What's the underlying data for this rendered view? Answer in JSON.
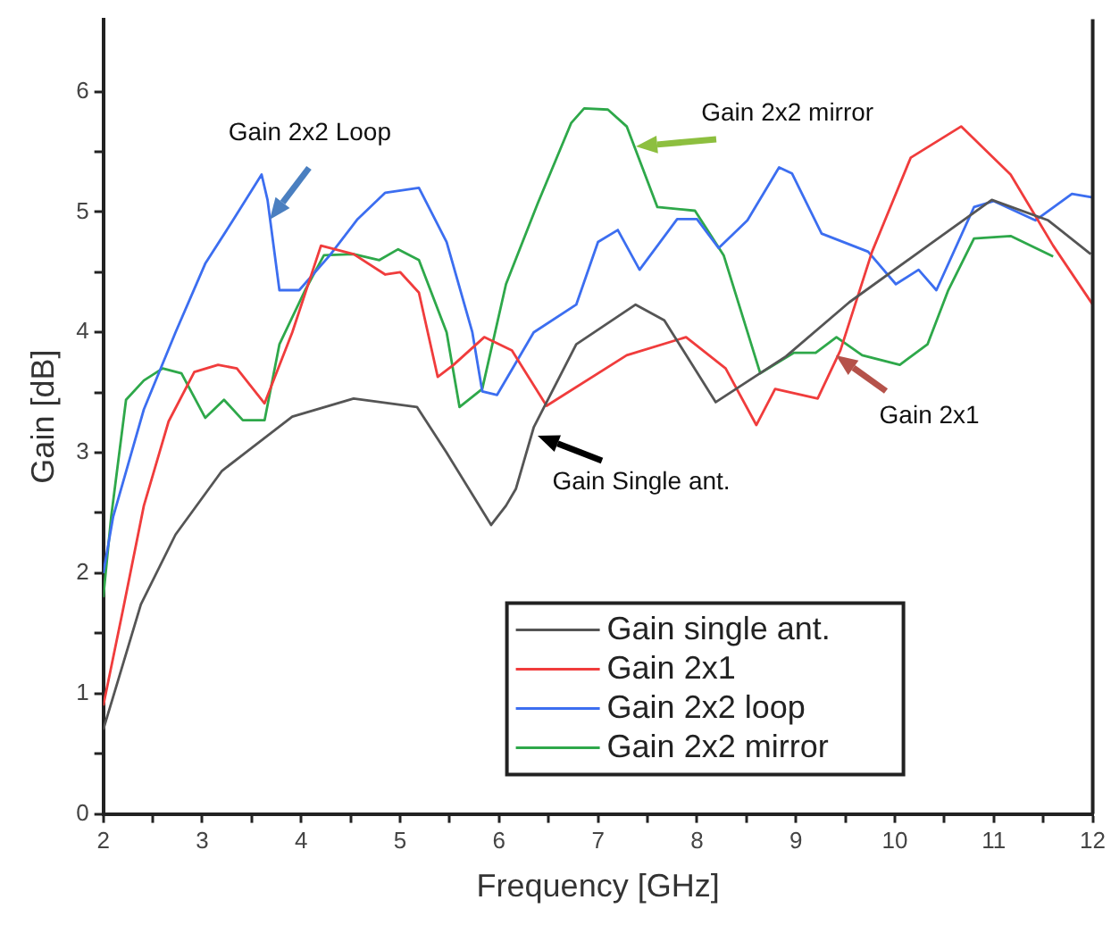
{
  "chart_data": {
    "type": "line",
    "xlabel": "Frequency [GHz]",
    "ylabel": "Gain [dB]",
    "xlim": [
      2,
      12
    ],
    "ylim": [
      0,
      6.6
    ],
    "xticks": [
      2,
      {
        "value": 2.5,
        "label": null
      },
      3,
      {
        "value": 3.5,
        "label": null
      },
      4,
      {
        "value": 4.5,
        "label": null
      },
      5,
      {
        "value": 5.5,
        "label": null
      },
      6,
      {
        "value": 6.5,
        "label": null
      },
      7,
      {
        "value": 7.5,
        "label": null
      },
      8,
      {
        "value": 8.5,
        "label": null
      },
      9,
      {
        "value": 9.5,
        "label": null
      },
      10,
      {
        "value": 10.5,
        "label": null
      },
      11,
      {
        "value": 11.5,
        "label": null
      },
      12
    ],
    "yticks": [
      0,
      {
        "value": 0.5,
        "label": null
      },
      1,
      {
        "value": 1.5,
        "label": null
      },
      2,
      {
        "value": 2.5,
        "label": null
      },
      3,
      {
        "value": 3.5,
        "label": null
      },
      4,
      {
        "value": 4.5,
        "label": null
      },
      5,
      {
        "value": 5.5,
        "label": null
      },
      6
    ],
    "grid": false,
    "legend": "bottom",
    "line_style": "solid",
    "series": [
      {
        "name": "Gain single ant.",
        "color": "#555555",
        "x": [
          2,
          2.38,
          2.73,
          3.2,
          3.91,
          4.53,
          5.17,
          5.47,
          5.92,
          6.07,
          6.17,
          6.35,
          6.78,
          7.38,
          7.67,
          8.19,
          8.9,
          9.54,
          10.3,
          10.98,
          11.55,
          11.98
        ],
        "values": [
          0.7,
          1.74,
          2.32,
          2.85,
          3.3,
          3.45,
          3.38,
          3.0,
          2.4,
          2.56,
          2.7,
          3.21,
          3.9,
          4.23,
          4.1,
          3.42,
          3.8,
          4.25,
          4.7,
          5.1,
          4.93,
          4.65
        ]
      },
      {
        "name": "Gain 2x1",
        "color": "#f03c3c",
        "x": [
          2,
          2.2,
          2.41,
          2.66,
          2.92,
          3.16,
          3.35,
          3.63,
          3.91,
          4.2,
          4.53,
          4.85,
          5.0,
          5.19,
          5.38,
          5.54,
          5.85,
          6.13,
          6.48,
          7.29,
          7.89,
          8.29,
          8.6,
          8.79,
          9.22,
          9.45,
          9.77,
          10.16,
          10.67,
          11.17,
          11.6,
          12
        ],
        "values": [
          0.9,
          1.7,
          2.56,
          3.26,
          3.67,
          3.73,
          3.7,
          3.41,
          4.0,
          4.72,
          4.65,
          4.48,
          4.5,
          4.33,
          3.63,
          3.73,
          3.96,
          3.85,
          3.39,
          3.81,
          3.96,
          3.7,
          3.23,
          3.53,
          3.45,
          3.85,
          4.67,
          5.45,
          5.71,
          5.31,
          4.72,
          4.23
        ]
      },
      {
        "name": "Gain 2x2 loop",
        "color": "#3c6ef0",
        "x": [
          2,
          2.1,
          2.41,
          2.73,
          3.03,
          3.31,
          3.6,
          3.66,
          3.78,
          3.98,
          4.29,
          4.57,
          4.85,
          5.19,
          5.47,
          5.73,
          5.83,
          5.98,
          6.35,
          6.78,
          7.0,
          7.2,
          7.42,
          7.8,
          8.0,
          8.22,
          8.51,
          8.83,
          8.96,
          9.26,
          9.73,
          10.01,
          10.24,
          10.42,
          10.8,
          11.0,
          11.42,
          11.79,
          12
        ],
        "values": [
          2.0,
          2.47,
          3.36,
          4.0,
          4.57,
          4.93,
          5.31,
          5.1,
          4.35,
          4.35,
          4.64,
          4.94,
          5.16,
          5.2,
          4.75,
          4.0,
          3.51,
          3.48,
          4.0,
          4.23,
          4.75,
          4.85,
          4.52,
          4.94,
          4.94,
          4.7,
          4.93,
          5.37,
          5.32,
          4.82,
          4.67,
          4.4,
          4.52,
          4.35,
          5.04,
          5.09,
          4.93,
          5.15,
          5.12
        ]
      },
      {
        "name": "Gain 2x2 mirror",
        "color": "#2ea84a",
        "x": [
          2,
          2.08,
          2.23,
          2.41,
          2.6,
          2.79,
          3.03,
          3.22,
          3.41,
          3.63,
          3.78,
          4.04,
          4.23,
          4.53,
          4.79,
          4.98,
          5.19,
          5.47,
          5.6,
          5.83,
          6.07,
          6.39,
          6.73,
          6.86,
          7.1,
          7.29,
          7.6,
          7.98,
          8.27,
          8.64,
          8.98,
          9.2,
          9.41,
          9.67,
          10.05,
          10.33,
          10.54,
          10.8,
          11.17,
          11.6
        ],
        "values": [
          1.8,
          2.47,
          3.44,
          3.6,
          3.7,
          3.66,
          3.29,
          3.44,
          3.27,
          3.27,
          3.9,
          4.35,
          4.64,
          4.65,
          4.6,
          4.69,
          4.6,
          4.0,
          3.38,
          3.53,
          4.4,
          5.07,
          5.74,
          5.86,
          5.85,
          5.71,
          5.04,
          5.01,
          4.64,
          3.66,
          3.83,
          3.83,
          3.96,
          3.81,
          3.73,
          3.9,
          4.35,
          4.78,
          4.8,
          4.63
        ]
      }
    ],
    "annotations": [
      {
        "text": "Gain 2x2 Loop",
        "x": 3.69,
        "y": 4.94
      },
      {
        "text": "Gain 2x2 mirror",
        "x": 7.38,
        "y": 5.55
      },
      {
        "text": "Gain 2x1",
        "x": 9.41,
        "y": 3.81
      },
      {
        "text": "Gain Single ant.",
        "x": 6.39,
        "y": 3.14
      }
    ]
  }
}
